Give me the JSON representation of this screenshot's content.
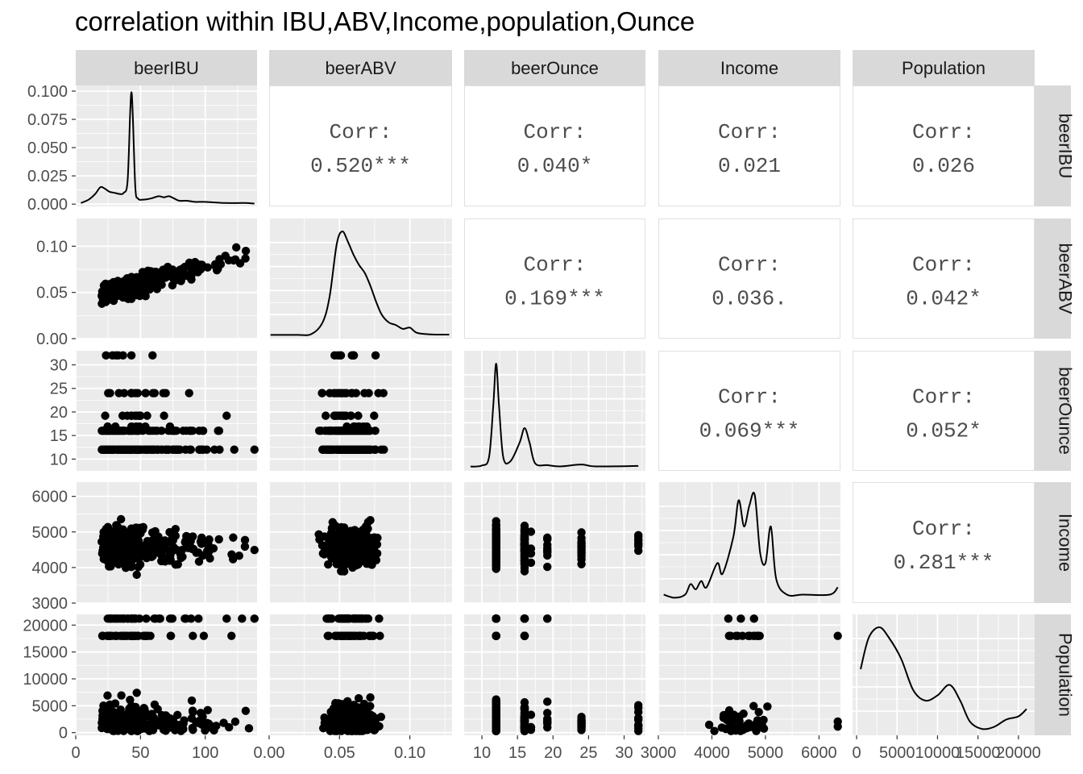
{
  "title": "correlation within IBU,ABV,Income,population,Ounce",
  "colors": {
    "panel_bg": "#ebebeb",
    "grid_major": "#ffffff",
    "strip_bg": "#d9d9d9",
    "corr_border": "#e0e0e0",
    "point": "#000000",
    "tick_text": "#4d4d4d"
  },
  "chart_data": {
    "type": "scatter-matrix",
    "title": "correlation within IBU,ABV,Income,population,Ounce",
    "variables": [
      "beerIBU",
      "beerABV",
      "beerOunce",
      "Income",
      "Population"
    ],
    "axes": {
      "beerIBU": {
        "range": [
          0,
          140
        ],
        "ticks": [
          0,
          50,
          100
        ],
        "tick_labels": [
          "0",
          "50",
          "100"
        ]
      },
      "beerABV": {
        "range": [
          0,
          0.13
        ],
        "ticks": [
          0,
          0.05,
          0.1
        ],
        "tick_labels": [
          "0.00",
          "0.05",
          "0.10"
        ],
        "y_tick_labels": [
          "0.00",
          "0.05",
          "0.10"
        ]
      },
      "beerOunce": {
        "range": [
          7.5,
          33
        ],
        "ticks": [
          10,
          15,
          20,
          25,
          30
        ],
        "tick_labels": [
          "10",
          "15",
          "20",
          "25",
          "30"
        ]
      },
      "Income": {
        "range": [
          3000,
          6400
        ],
        "ticks": [
          3000,
          4000,
          5000,
          6000
        ],
        "tick_labels": [
          "3000",
          "4000",
          "5000",
          "6000"
        ]
      },
      "Population": {
        "range": [
          -500,
          22000
        ],
        "ticks": [
          0,
          5000,
          10000,
          15000,
          20000
        ],
        "tick_labels": [
          "0",
          "5000",
          "10000",
          "15000",
          "20000"
        ]
      }
    },
    "density_beerIBU_yaxis": {
      "range": [
        -0.002,
        0.105
      ],
      "ticks": [
        0,
        0.025,
        0.05,
        0.075,
        0.1
      ],
      "tick_labels": [
        "0.000",
        "0.025",
        "0.050",
        "0.075",
        "0.100"
      ]
    },
    "correlations": [
      {
        "row": "beerIBU",
        "col": "beerABV",
        "label": "Corr:",
        "value": "0.520***"
      },
      {
        "row": "beerIBU",
        "col": "beerOunce",
        "label": "Corr:",
        "value": "0.040*"
      },
      {
        "row": "beerIBU",
        "col": "Income",
        "label": "Corr:",
        "value": "0.021"
      },
      {
        "row": "beerIBU",
        "col": "Population",
        "label": "Corr:",
        "value": "0.026"
      },
      {
        "row": "beerABV",
        "col": "beerOunce",
        "label": "Corr:",
        "value": "0.169***"
      },
      {
        "row": "beerABV",
        "col": "Income",
        "label": "Corr:",
        "value": "0.036."
      },
      {
        "row": "beerABV",
        "col": "Population",
        "label": "Corr:",
        "value": "0.042*"
      },
      {
        "row": "beerOunce",
        "col": "Income",
        "label": "Corr:",
        "value": "0.069***"
      },
      {
        "row": "beerOunce",
        "col": "Population",
        "label": "Corr:",
        "value": "0.052*"
      },
      {
        "row": "Income",
        "col": "Population",
        "label": "Corr:",
        "value": "0.281***"
      }
    ],
    "densities": {
      "beerIBU": [
        [
          4,
          0.001
        ],
        [
          10,
          0.004
        ],
        [
          15,
          0.009
        ],
        [
          19,
          0.015
        ],
        [
          22,
          0.014
        ],
        [
          26,
          0.011
        ],
        [
          30,
          0.01
        ],
        [
          34,
          0.009
        ],
        [
          37,
          0.01
        ],
        [
          40,
          0.02
        ],
        [
          42,
          0.08
        ],
        [
          43,
          0.099
        ],
        [
          44,
          0.08
        ],
        [
          46,
          0.015
        ],
        [
          48,
          0.005
        ],
        [
          52,
          0.004
        ],
        [
          58,
          0.005
        ],
        [
          64,
          0.007
        ],
        [
          68,
          0.006
        ],
        [
          72,
          0.007
        ],
        [
          76,
          0.005
        ],
        [
          80,
          0.003
        ],
        [
          86,
          0.003
        ],
        [
          92,
          0.002
        ],
        [
          100,
          0.002
        ],
        [
          115,
          0.001
        ],
        [
          130,
          0.001
        ],
        [
          138,
          0.0005
        ]
      ],
      "beerABV": [
        [
          0.001,
          0.2
        ],
        [
          0.02,
          0.2
        ],
        [
          0.03,
          0.5
        ],
        [
          0.038,
          5
        ],
        [
          0.043,
          15
        ],
        [
          0.048,
          35
        ],
        [
          0.052,
          40
        ],
        [
          0.056,
          36
        ],
        [
          0.06,
          31
        ],
        [
          0.064,
          27
        ],
        [
          0.068,
          24
        ],
        [
          0.072,
          19
        ],
        [
          0.076,
          13
        ],
        [
          0.08,
          8
        ],
        [
          0.085,
          5
        ],
        [
          0.09,
          4
        ],
        [
          0.095,
          2.5
        ],
        [
          0.1,
          3
        ],
        [
          0.105,
          1
        ],
        [
          0.115,
          0.4
        ],
        [
          0.128,
          0.3
        ]
      ],
      "beerOunce": [
        [
          8.4,
          0.005
        ],
        [
          10,
          0.01
        ],
        [
          11,
          0.05
        ],
        [
          11.6,
          0.3
        ],
        [
          12,
          0.5
        ],
        [
          12.4,
          0.3
        ],
        [
          13,
          0.05
        ],
        [
          14,
          0.03
        ],
        [
          15.3,
          0.12
        ],
        [
          16,
          0.19
        ],
        [
          16.7,
          0.12
        ],
        [
          17.5,
          0.02
        ],
        [
          19.2,
          0.012
        ],
        [
          21,
          0.006
        ],
        [
          24,
          0.015
        ],
        [
          26,
          0.006
        ],
        [
          32,
          0.008
        ]
      ],
      "Income": [
        [
          3100,
          0.05
        ],
        [
          3300,
          0.02
        ],
        [
          3500,
          0.05
        ],
        [
          3600,
          0.15
        ],
        [
          3700,
          0.1
        ],
        [
          3800,
          0.18
        ],
        [
          3900,
          0.12
        ],
        [
          4100,
          0.35
        ],
        [
          4200,
          0.25
        ],
        [
          4400,
          0.6
        ],
        [
          4500,
          0.95
        ],
        [
          4600,
          0.7
        ],
        [
          4700,
          0.9
        ],
        [
          4800,
          1.0
        ],
        [
          4900,
          0.45
        ],
        [
          5000,
          0.35
        ],
        [
          5100,
          0.7
        ],
        [
          5200,
          0.2
        ],
        [
          5400,
          0.05
        ],
        [
          5700,
          0.05
        ],
        [
          6200,
          0.05
        ],
        [
          6350,
          0.12
        ]
      ],
      "Population": [
        [
          500,
          0.6
        ],
        [
          1500,
          0.9
        ],
        [
          2800,
          1.0
        ],
        [
          4000,
          0.9
        ],
        [
          5500,
          0.7
        ],
        [
          7000,
          0.4
        ],
        [
          8500,
          0.3
        ],
        [
          10000,
          0.35
        ],
        [
          11500,
          0.45
        ],
        [
          12800,
          0.3
        ],
        [
          14000,
          0.1
        ],
        [
          15500,
          0.03
        ],
        [
          17000,
          0.05
        ],
        [
          18500,
          0.12
        ],
        [
          20000,
          0.15
        ],
        [
          21000,
          0.22
        ]
      ]
    },
    "scatter_summaries": {
      "beerABV_vs_beerIBU": "dense cloud; ABV 0.03-0.10 rising with IBU 5-135",
      "beerOunce_vs_beerIBU": "horizontal bands at 12, 16, 19.2, 24, 32 oz",
      "Income_vs_beerIBU": "cloud 3100-5400 plus band at 6350",
      "Population_vs_beerIBU": "bands at 21000, 18000 and cloud 0-12000"
    }
  }
}
